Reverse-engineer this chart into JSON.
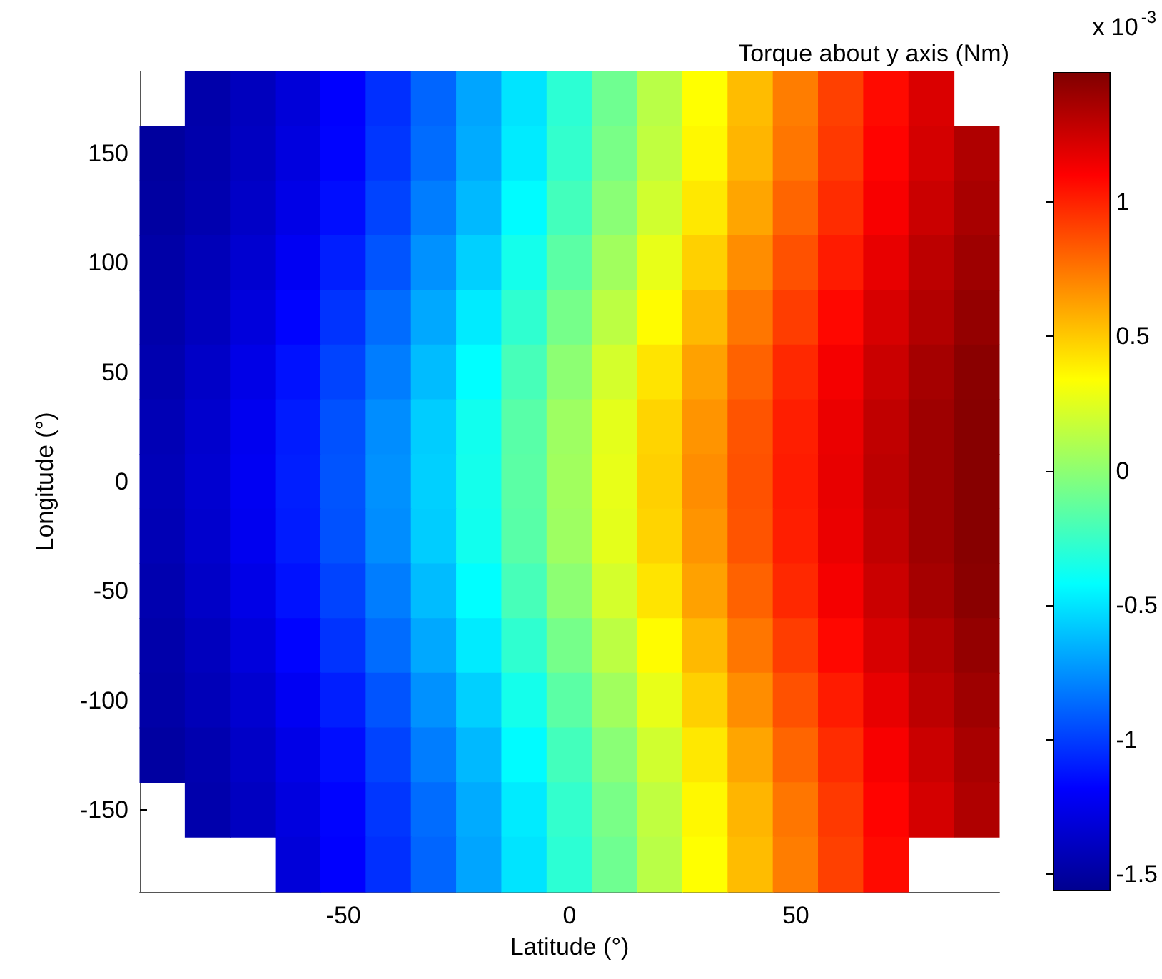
{
  "chart_data": {
    "type": "heatmap",
    "title": "Torque about y axis (Nm)",
    "xlabel": "Latitude (°)",
    "ylabel": "Longitude (°)",
    "clabel": "x 10$^{-3}$",
    "categories": [
      null,
      null,
      null,
      null,
      "-50",
      null,
      null,
      null,
      null,
      "0",
      null,
      null,
      null,
      null,
      "50",
      null,
      null,
      null,
      null
    ],
    "y_categories": [
      null,
      "150",
      null,
      "100",
      null,
      "50",
      null,
      "0",
      null,
      "-50",
      null,
      "-100",
      null,
      "-150",
      null
    ],
    "cells": [
      [
        null,
        -1.47,
        -1.4,
        -1.31,
        -1.18,
        -1.04,
        -0.88,
        -0.69,
        -0.5,
        -0.29,
        -0.09,
        0.13,
        0.34,
        0.54,
        0.73,
        0.91,
        1.07,
        1.21,
        null
      ],
      [
        -1.51,
        -1.46,
        -1.39,
        -1.29,
        -1.17,
        -1.02,
        -0.86,
        -0.67,
        -0.48,
        -0.27,
        -0.06,
        0.15,
        0.36,
        0.56,
        0.75,
        0.93,
        1.09,
        1.23,
        1.34
      ],
      [
        -1.5,
        -1.45,
        -1.37,
        -1.26,
        -1.14,
        -0.98,
        -0.81,
        -0.63,
        -0.43,
        -0.22,
        -0.01,
        0.2,
        0.41,
        0.61,
        0.8,
        0.97,
        1.12,
        1.26,
        1.36
      ],
      [
        -1.48,
        -1.42,
        -1.34,
        -1.22,
        -1.09,
        -0.93,
        -0.75,
        -0.56,
        -0.36,
        -0.15,
        0.06,
        0.27,
        0.48,
        0.68,
        0.86,
        1.02,
        1.17,
        1.3,
        1.39
      ],
      [
        -1.47,
        -1.4,
        -1.3,
        -1.17,
        -1.03,
        -0.86,
        -0.68,
        -0.48,
        -0.28,
        -0.07,
        0.14,
        0.35,
        0.55,
        0.75,
        0.92,
        1.08,
        1.22,
        1.33,
        1.42
      ],
      [
        -1.45,
        -1.37,
        -1.26,
        -1.13,
        -0.98,
        -0.81,
        -0.62,
        -0.42,
        -0.21,
        0,
        0.21,
        0.42,
        0.62,
        0.81,
        0.98,
        1.13,
        1.26,
        1.37,
        1.45
      ],
      [
        -1.43,
        -1.35,
        -1.23,
        -1.1,
        -0.94,
        -0.76,
        -0.57,
        -0.37,
        -0.16,
        0.05,
        0.26,
        0.47,
        0.66,
        0.85,
        1.01,
        1.16,
        1.29,
        1.39,
        1.46
      ],
      [
        -1.42,
        -1.34,
        -1.22,
        -1.09,
        -0.93,
        -0.75,
        -0.56,
        -0.36,
        -0.15,
        0.06,
        0.27,
        0.48,
        0.68,
        0.86,
        1.02,
        1.17,
        1.3,
        1.39,
        1.46
      ],
      [
        -1.43,
        -1.35,
        -1.23,
        -1.1,
        -0.94,
        -0.76,
        -0.57,
        -0.37,
        -0.16,
        0.05,
        0.26,
        0.47,
        0.66,
        0.85,
        1.01,
        1.16,
        1.29,
        1.39,
        1.46
      ],
      [
        -1.45,
        -1.37,
        -1.26,
        -1.13,
        -0.98,
        -0.81,
        -0.62,
        -0.42,
        -0.21,
        0,
        0.21,
        0.42,
        0.62,
        0.81,
        0.98,
        1.13,
        1.26,
        1.37,
        1.45
      ],
      [
        -1.47,
        -1.4,
        -1.3,
        -1.17,
        -1.03,
        -0.86,
        -0.68,
        -0.48,
        -0.28,
        -0.07,
        0.14,
        0.35,
        0.55,
        0.75,
        0.92,
        1.08,
        1.22,
        1.33,
        1.42
      ],
      [
        -1.48,
        -1.42,
        -1.34,
        -1.22,
        -1.09,
        -0.93,
        -0.75,
        -0.56,
        -0.36,
        -0.15,
        0.06,
        0.27,
        0.48,
        0.68,
        0.86,
        1.02,
        1.17,
        1.3,
        1.39
      ],
      [
        -1.5,
        -1.45,
        -1.37,
        -1.26,
        -1.14,
        -0.98,
        -0.81,
        -0.63,
        -0.43,
        -0.22,
        -0.01,
        0.2,
        0.41,
        0.61,
        0.8,
        0.97,
        1.12,
        1.26,
        1.36
      ],
      [
        null,
        -1.46,
        -1.39,
        -1.29,
        -1.17,
        -1.02,
        -0.86,
        -0.67,
        -0.48,
        -0.27,
        -0.06,
        0.15,
        0.36,
        0.56,
        0.75,
        0.93,
        1.09,
        1.23,
        1.34
      ],
      [
        null,
        null,
        null,
        -1.31,
        -1.18,
        -1.04,
        -0.88,
        -0.69,
        -0.5,
        -0.29,
        -0.09,
        0.13,
        0.34,
        0.54,
        0.73,
        0.91,
        1.07,
        null,
        null
      ]
    ],
    "clim": [
      -1.56,
      1.48
    ],
    "cticks": [
      -1.5,
      -1,
      -0.5,
      0,
      0.5,
      1
    ]
  }
}
